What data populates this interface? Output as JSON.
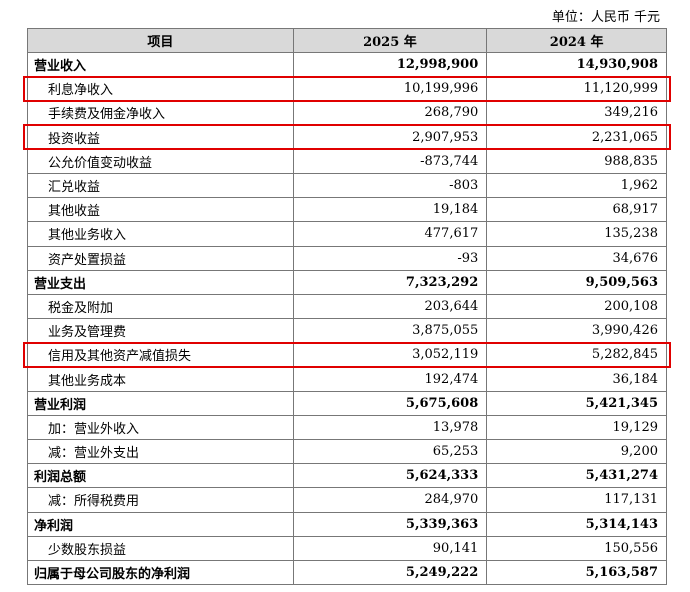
{
  "unit": "单位：人民币 千元",
  "table": {
    "header": [
      "项目",
      "2025 年",
      "2024 年"
    ],
    "rows": [
      {
        "label": "营业收入",
        "values": [
          "12,998,900",
          "14,930,908"
        ],
        "bold": true
      },
      {
        "label": "利息净收入",
        "values": [
          "10,199,996",
          "11,120,999"
        ],
        "highlighted": true
      },
      {
        "label": "手续费及佣金净收入",
        "values": [
          "268,790",
          "349,216"
        ]
      },
      {
        "label": "投资收益",
        "values": [
          "2,907,953",
          "2,231,065"
        ],
        "highlighted": true
      },
      {
        "label": "公允价值变动收益",
        "values": [
          "-873,744",
          "988,835"
        ]
      },
      {
        "label": "汇兑收益",
        "values": [
          "-803",
          "1,962"
        ]
      },
      {
        "label": "其他收益",
        "values": [
          "19,184",
          "68,917"
        ]
      },
      {
        "label": "其他业务收入",
        "values": [
          "477,617",
          "135,238"
        ]
      },
      {
        "label": "资产处置损益",
        "values": [
          "-93",
          "34,676"
        ]
      },
      {
        "label": "营业支出",
        "values": [
          "7,323,292",
          "9,509,563"
        ],
        "bold": true
      },
      {
        "label": "税金及附加",
        "values": [
          "203,644",
          "200,108"
        ]
      },
      {
        "label": "业务及管理费",
        "values": [
          "3,875,055",
          "3,990,426"
        ]
      },
      {
        "label": "信用及其他资产减值损失",
        "values": [
          "3,052,119",
          "5,282,845"
        ],
        "highlighted": true
      },
      {
        "label": "其他业务成本",
        "values": [
          "192,474",
          "36,184"
        ]
      },
      {
        "label": "营业利润",
        "values": [
          "5,675,608",
          "5,421,345"
        ],
        "bold": true
      },
      {
        "label": "加：营业外收入",
        "values": [
          "13,978",
          "19,129"
        ]
      },
      {
        "label": "减：营业外支出",
        "values": [
          "65,253",
          "9,200"
        ]
      },
      {
        "label": "利润总额",
        "values": [
          "5,624,333",
          "5,431,274"
        ],
        "bold": true
      },
      {
        "label": "减：所得税费用",
        "values": [
          "284,970",
          "117,131"
        ]
      },
      {
        "label": "净利润",
        "values": [
          "5,339,363",
          "5,314,143"
        ],
        "bold": true
      },
      {
        "label": "少数股东损益",
        "values": [
          "90,141",
          "150,556"
        ]
      },
      {
        "label": "归属于母公司股东的净利润",
        "values": [
          "5,249,222",
          "5,163,587"
        ],
        "bold": true
      }
    ]
  }
}
